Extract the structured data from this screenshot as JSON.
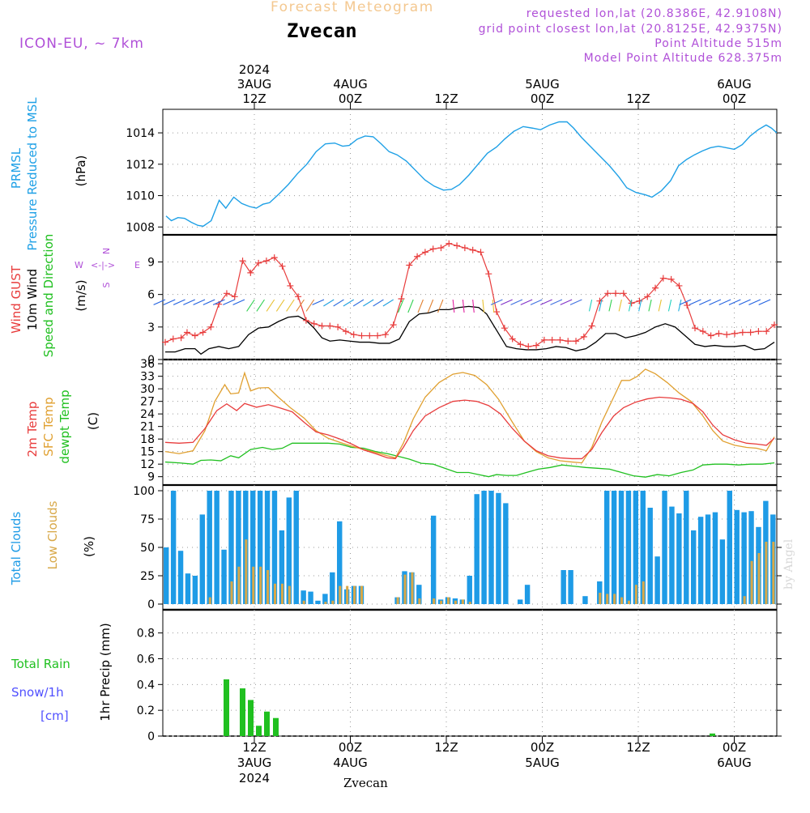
{
  "header": {
    "title": "Forecast Meteogram",
    "location": "Zvecan",
    "model": "ICON-EU, ~ 7km",
    "requested": "requested lon,lat (20.8386E, 42.9108N)",
    "gridpoint": "grid point closest lon,lat (20.8125E, 42.9375N)",
    "point_alt": "Point Altitude 515m",
    "model_alt": "Model Point Altitude 628.375m",
    "footer": "Zvecan",
    "watermark": "by Angel"
  },
  "colors": {
    "pressure": "#1ea0e6",
    "gust": "#e83c3c",
    "wind": "#000000",
    "t2m": "#e83c3c",
    "tsfc": "#e0a030",
    "dewpt": "#20c020",
    "cloud_total": "#1e9be6",
    "cloud_low": "#d8a848",
    "rain": "#20c020",
    "snow": "#5050ff",
    "purple": "#b050d8"
  },
  "time_axis": {
    "top": [
      {
        "l1": "2024",
        "l2": "3AUG",
        "l3": "12Z"
      },
      {
        "l1": "",
        "l2": "4AUG",
        "l3": "00Z"
      },
      {
        "l1": "",
        "l2": "",
        "l3": "12Z"
      },
      {
        "l1": "",
        "l2": "5AUG",
        "l3": "00Z"
      },
      {
        "l1": "",
        "l2": "",
        "l3": "12Z"
      },
      {
        "l1": "",
        "l2": "6AUG",
        "l3": "00Z"
      }
    ],
    "bottom": [
      {
        "l1": "12Z",
        "l2": "3AUG",
        "l3": "2024"
      },
      {
        "l1": "00Z",
        "l2": "4AUG",
        "l3": ""
      },
      {
        "l1": "12Z",
        "l2": "",
        "l3": ""
      },
      {
        "l1": "00Z",
        "l2": "5AUG",
        "l3": ""
      },
      {
        "l1": "12Z",
        "l2": "",
        "l3": ""
      },
      {
        "l1": "00Z",
        "l2": "6AUG",
        "l3": ""
      }
    ]
  },
  "chart_data": [
    {
      "type": "line",
      "title": "PRMSL Pressure Reduced to MSL",
      "ylabel_lines": [
        "PRMSL",
        "Pressure Reduced to MSL"
      ],
      "unit": "(hPa)",
      "ylim": [
        1007.5,
        1015.5
      ],
      "yticks": [
        1008,
        1010,
        1012,
        1014
      ],
      "x": [
        0,
        1,
        2,
        3,
        4,
        5,
        6,
        7,
        8,
        9,
        10,
        11,
        12,
        13,
        14,
        15,
        16,
        17,
        18,
        19,
        20,
        21,
        22,
        23,
        24,
        25,
        26,
        27,
        28,
        29,
        30,
        31,
        32,
        33,
        34,
        35,
        36,
        37,
        38,
        39,
        40,
        41,
        42,
        43,
        44,
        45,
        46,
        47,
        48,
        49,
        50,
        51,
        52,
        53,
        54,
        55,
        56,
        57,
        58,
        59,
        60,
        61,
        62,
        63,
        64,
        65,
        66,
        67,
        68,
        69,
        70,
        71,
        72,
        73,
        74,
        75,
        76,
        77,
        78,
        79,
        80,
        81,
        82,
        83,
        84,
        85,
        86,
        87,
        88,
        89,
        90,
        91,
        92,
        93,
        94,
        95,
        96,
        97,
        98,
        99,
        100,
        101,
        102,
        103,
        104,
        105,
        106,
        107,
        108,
        109,
        110,
        111,
        112,
        113,
        114,
        115,
        116,
        117,
        118,
        119,
        120,
        121,
        122,
        123,
        124,
        125,
        126,
        127,
        128,
        129,
        130,
        131,
        132,
        133,
        134,
        135,
        136,
        137,
        138,
        139,
        140,
        141,
        142,
        143,
        144,
        145,
        146,
        147,
        148,
        149,
        150,
        151,
        152,
        153,
        154,
        155,
        156,
        157,
        158,
        159,
        160,
        161,
        162,
        163,
        164,
        165,
        166,
        167,
        168,
        169,
        170,
        171,
        172,
        173,
        174,
        175,
        176,
        177,
        178,
        179,
        180,
        181,
        182,
        183,
        184,
        185,
        186,
        187,
        188,
        189,
        190,
        191,
        192,
        193,
        194,
        195,
        196,
        197,
        198,
        199,
        200,
        201,
        202,
        203,
        204,
        205,
        206,
        207,
        208,
        209,
        210,
        211,
        212,
        213,
        214,
        215,
        216,
        217,
        218,
        219,
        220,
        221,
        222,
        223,
        224,
        225,
        226,
        227,
        228,
        229,
        230,
        231,
        232,
        233,
        234,
        235,
        236,
        237,
        238,
        239,
        240,
        241,
        242,
        243,
        244,
        245,
        246,
        247,
        248,
        249,
        250,
        251,
        252,
        253,
        254,
        255,
        256,
        257,
        258,
        259,
        260,
        261,
        262,
        263,
        264,
        265,
        266,
        267,
        268,
        269,
        270,
        271,
        272,
        273,
        274,
        275,
        276,
        277,
        278,
        279,
        280,
        281,
        282,
        283,
        284,
        285,
        286,
        287,
        288,
        289,
        290,
        291,
        292,
        293,
        294,
        295,
        296,
        297,
        298,
        299,
        300,
        301,
        302,
        303,
        304,
        305,
        306,
        307,
        308,
        309,
        310,
        311,
        312,
        313,
        314,
        315,
        316,
        317,
        318,
        319,
        320,
        321,
        322,
        323,
        324,
        325,
        326,
        327,
        328,
        329,
        330,
        331,
        332,
        333,
        334,
        335,
        336,
        337,
        338,
        339,
        340,
        341,
        342,
        343,
        344,
        345,
        346,
        347,
        348,
        349,
        350,
        351,
        352,
        353,
        354,
        355,
        356,
        357,
        358,
        359,
        360,
        361,
        362,
        363,
        364,
        365,
        366,
        367,
        368,
        369,
        370,
        371,
        372,
        373,
        374,
        375,
        376,
        377,
        378,
        379,
        380
      ],
      "series_points": [
        [
          0,
          1008.7
        ],
        [
          4,
          1008.4
        ],
        [
          9,
          1008.6
        ],
        [
          14,
          1008.55
        ],
        [
          19,
          1008.3
        ],
        [
          24,
          1008.1
        ],
        [
          28,
          1008.05
        ],
        [
          34,
          1008.4
        ],
        [
          40,
          1009.7
        ],
        [
          45,
          1009.2
        ],
        [
          51,
          1009.9
        ],
        [
          57,
          1009.5
        ],
        [
          63,
          1009.3
        ],
        [
          68,
          1009.2
        ],
        [
          73,
          1009.45
        ],
        [
          78,
          1009.55
        ],
        [
          85,
          1010.1
        ],
        [
          92,
          1010.7
        ],
        [
          99,
          1011.4
        ],
        [
          106,
          1012.0
        ],
        [
          113,
          1012.8
        ],
        [
          120,
          1013.3
        ],
        [
          127,
          1013.35
        ],
        [
          133,
          1013.15
        ],
        [
          138,
          1013.2
        ],
        [
          144,
          1013.6
        ],
        [
          150,
          1013.8
        ],
        [
          156,
          1013.75
        ],
        [
          162,
          1013.3
        ],
        [
          168,
          1012.8
        ],
        [
          174,
          1012.6
        ],
        [
          181,
          1012.2
        ],
        [
          188,
          1011.6
        ],
        [
          195,
          1011.0
        ],
        [
          202,
          1010.6
        ],
        [
          209,
          1010.35
        ],
        [
          215,
          1010.4
        ],
        [
          221,
          1010.7
        ],
        [
          228,
          1011.3
        ],
        [
          235,
          1012.0
        ],
        [
          242,
          1012.7
        ],
        [
          249,
          1013.1
        ],
        [
          255,
          1013.6
        ],
        [
          262,
          1014.1
        ],
        [
          269,
          1014.4
        ],
        [
          276,
          1014.3
        ],
        [
          282,
          1014.2
        ],
        [
          289,
          1014.5
        ],
        [
          296,
          1014.7
        ],
        [
          302,
          1014.7
        ],
        [
          307,
          1014.3
        ],
        [
          313,
          1013.7
        ],
        [
          320,
          1013.1
        ],
        [
          327,
          1012.5
        ],
        [
          334,
          1011.9
        ],
        [
          341,
          1011.2
        ],
        [
          347,
          1010.5
        ],
        [
          354,
          1010.2
        ],
        [
          361,
          1010.05
        ],
        [
          366,
          1009.9
        ],
        [
          373,
          1010.3
        ],
        [
          380,
          1010.95
        ],
        [
          386,
          1011.9
        ],
        [
          392,
          1012.3
        ],
        [
          398,
          1012.6
        ],
        [
          404,
          1012.85
        ],
        [
          410,
          1013.05
        ],
        [
          416,
          1013.15
        ],
        [
          422,
          1013.05
        ],
        [
          428,
          1012.95
        ],
        [
          434,
          1013.25
        ],
        [
          440,
          1013.8
        ],
        [
          446,
          1014.2
        ],
        [
          452,
          1014.5
        ],
        [
          456,
          1014.3
        ],
        [
          460,
          1014.0
        ]
      ]
    }
  ]
}
